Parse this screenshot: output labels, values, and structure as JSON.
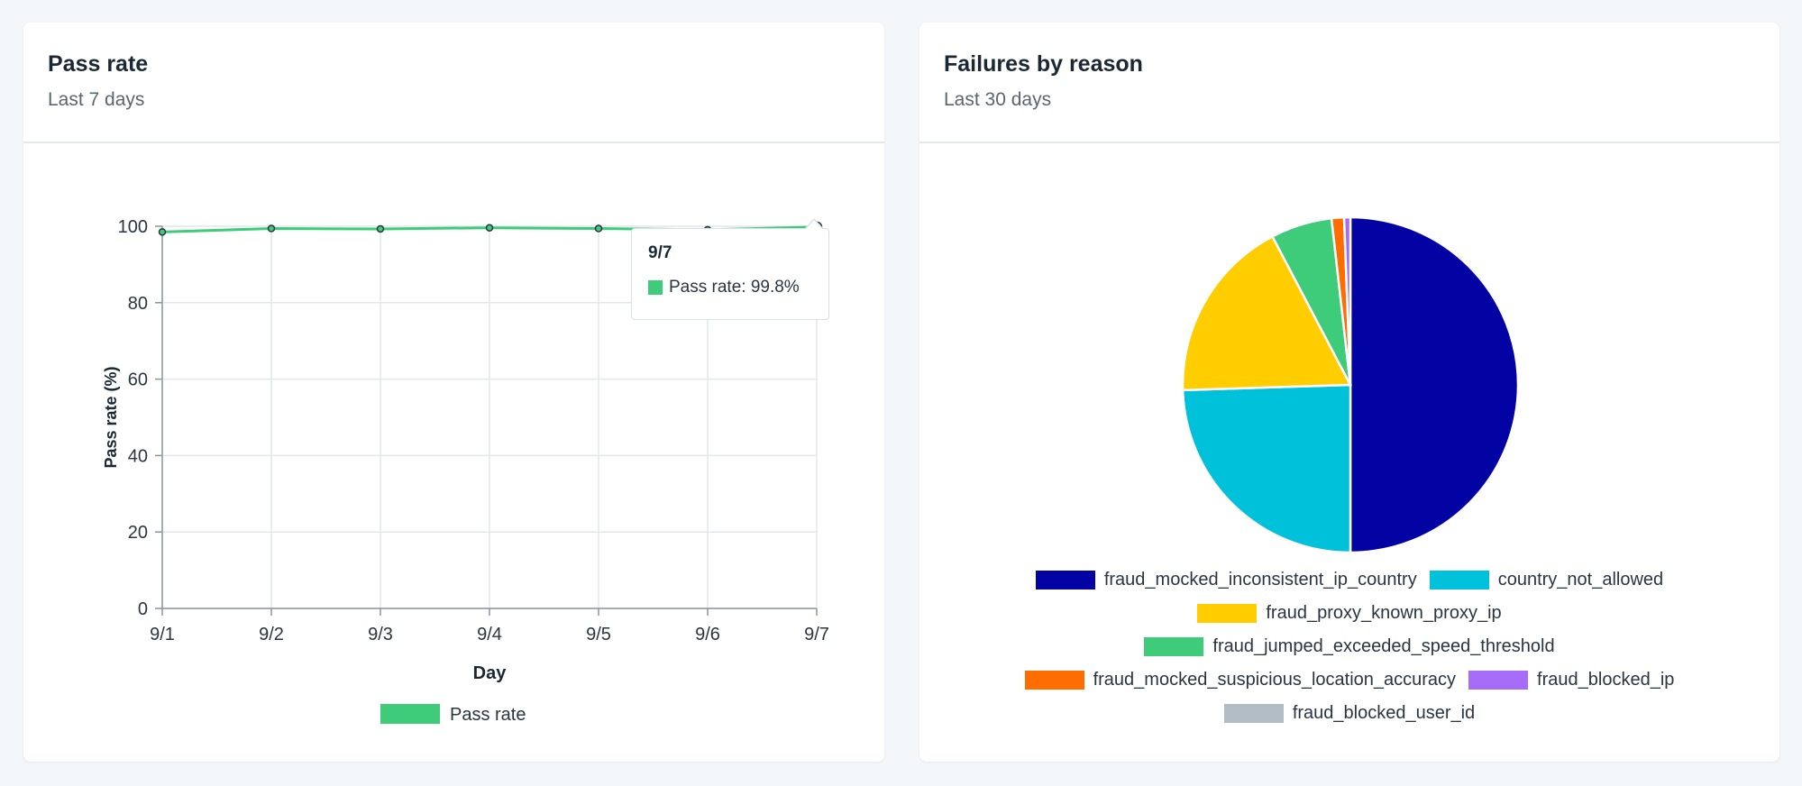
{
  "pass_card": {
    "title": "Pass rate",
    "subtitle": "Last 7 days",
    "tooltip": {
      "label": "9/7",
      "text": "Pass rate: 99.8%"
    }
  },
  "failure_card": {
    "title": "Failures by reason",
    "subtitle": "Last 30 days"
  },
  "chart_data": [
    {
      "type": "line",
      "x": [
        "9/1",
        "9/2",
        "9/3",
        "9/4",
        "9/5",
        "9/6",
        "9/7"
      ],
      "series": [
        {
          "name": "Pass rate",
          "values": [
            98.5,
            99.4,
            99.3,
            99.6,
            99.4,
            99.1,
            99.8
          ],
          "color": "#3ecb7a"
        }
      ],
      "xlabel": "Day",
      "ylabel": "Pass rate (%)",
      "ylim": [
        0,
        100
      ],
      "yticks": [
        0,
        20,
        40,
        60,
        80,
        100
      ],
      "grid": true,
      "legend": "bottom"
    },
    {
      "type": "pie",
      "categories": [
        "fraud_mocked_inconsistent_ip_country",
        "country_not_allowed",
        "fraud_proxy_known_proxy_ip",
        "fraud_jumped_exceeded_speed_threshold",
        "fraud_mocked_suspicious_location_accuracy",
        "fraud_blocked_ip",
        "fraud_blocked_user_id"
      ],
      "values": [
        50.0,
        24.5,
        17.8,
        5.9,
        1.2,
        0.6,
        0.0
      ],
      "colors": [
        "#0303a3",
        "#00c1da",
        "#ffcd00",
        "#3ecb7a",
        "#ff6d00",
        "#a66cf8",
        "#b1bcc5"
      ],
      "legend": "bottom"
    }
  ]
}
